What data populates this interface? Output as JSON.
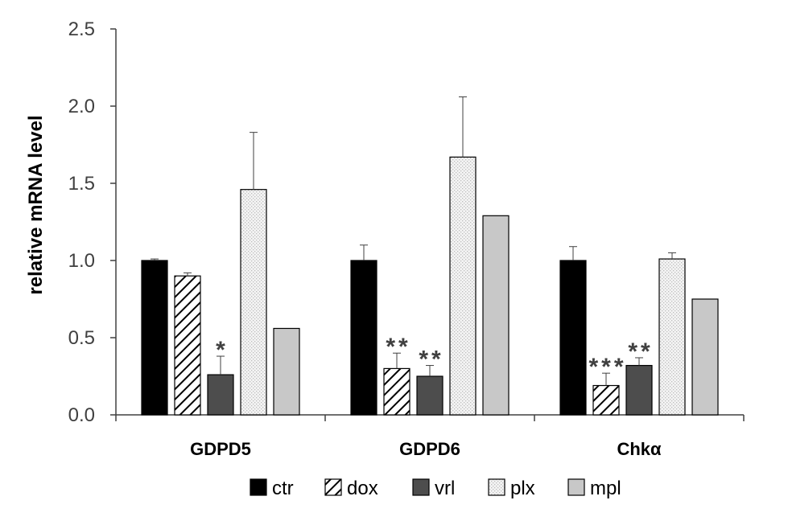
{
  "chart_data": {
    "type": "bar",
    "title": "",
    "xlabel": "",
    "ylabel": "relative mRNA level",
    "ylim": [
      0,
      2.5
    ],
    "yticks": [
      "0.0",
      "0.5",
      "1.0",
      "1.5",
      "2.0",
      "2.5"
    ],
    "categories": [
      "GDPD5",
      "GDPD6",
      "Chkα"
    ],
    "series": [
      {
        "name": "ctr",
        "values": [
          1.0,
          1.0,
          1.0
        ],
        "errors": [
          0.01,
          0.1,
          0.09
        ],
        "fill": "#000000",
        "pattern": "solid"
      },
      {
        "name": "dox",
        "values": [
          0.9,
          0.3,
          0.19
        ],
        "errors": [
          0.02,
          0.1,
          0.08
        ],
        "fill": "#ffffff",
        "pattern": "diagonal"
      },
      {
        "name": "vrl",
        "values": [
          0.26,
          0.25,
          0.32
        ],
        "errors": [
          0.12,
          0.07,
          0.05
        ],
        "fill": "#4d4d4d",
        "pattern": "solid"
      },
      {
        "name": "plx",
        "values": [
          1.46,
          1.67,
          1.01
        ],
        "errors": [
          0.37,
          0.39,
          0.04
        ],
        "fill": "#eeeeee",
        "pattern": "dots"
      },
      {
        "name": "mpl",
        "values": [
          0.56,
          1.29,
          0.75
        ],
        "errors": [
          0,
          0,
          0
        ],
        "fill": "#c8c8c8",
        "pattern": "solid"
      }
    ],
    "annotations": [
      {
        "category": 0,
        "series": 2,
        "text": "*"
      },
      {
        "category": 1,
        "series": 1,
        "text": "**"
      },
      {
        "category": 1,
        "series": 2,
        "text": "**"
      },
      {
        "category": 2,
        "series": 1,
        "text": "***"
      },
      {
        "category": 2,
        "series": 2,
        "text": "**"
      }
    ],
    "legend_position": "bottom",
    "grid": false
  }
}
